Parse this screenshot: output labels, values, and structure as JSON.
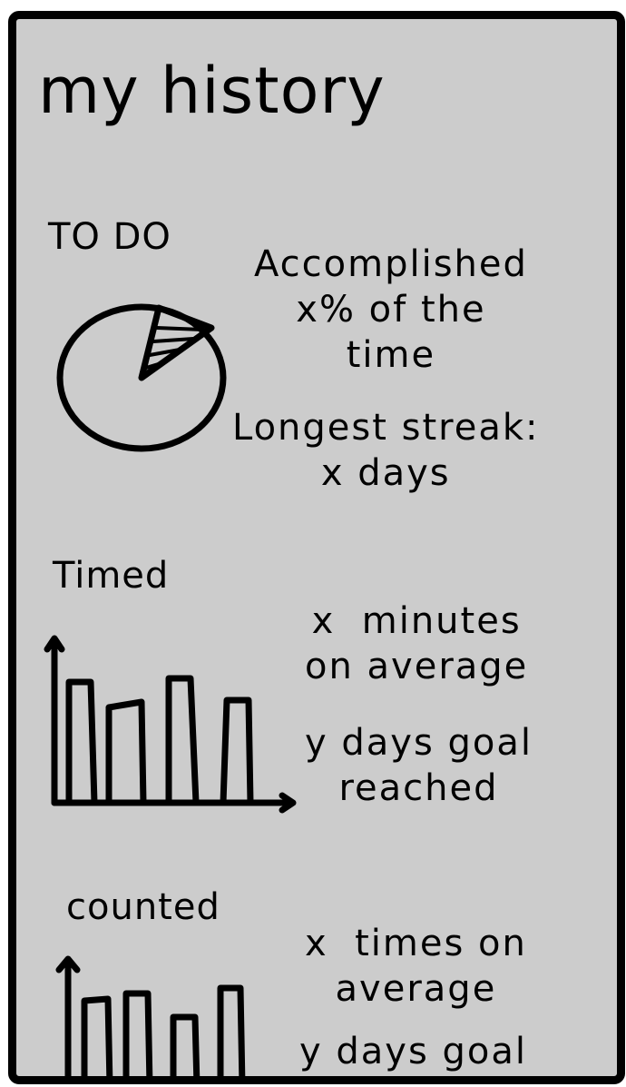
{
  "screen": {
    "title": "my history",
    "todo": {
      "heading": "TO DO",
      "accomplished": "Accomplished\nx% of the\ntime",
      "streak": "Longest streak:\nx days",
      "pie_accomplished_percent": 10
    },
    "timed": {
      "heading": "Timed",
      "average": "x  minutes\non average",
      "goal": "y days goal\nreached"
    },
    "counted": {
      "heading": "counted",
      "average": "x  times on\naverage",
      "goal": "y days goal"
    }
  },
  "colors": {
    "background": "#cccccc",
    "ink": "#000000",
    "page": "#ffffff"
  }
}
